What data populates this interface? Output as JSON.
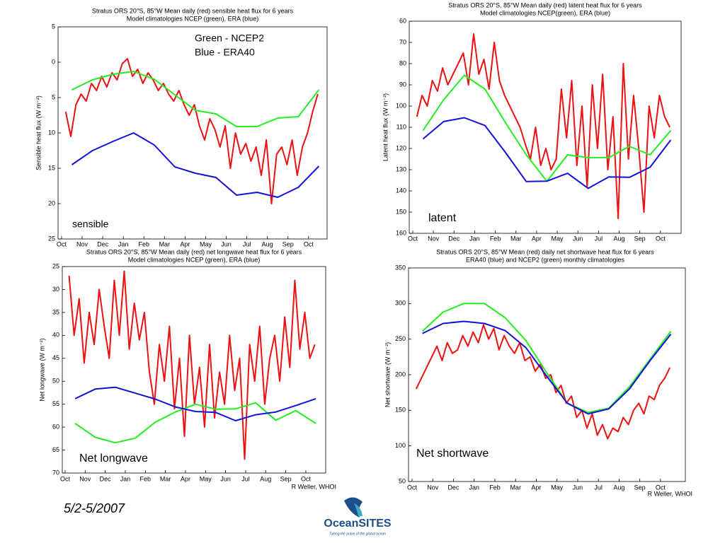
{
  "chart_data": [
    {
      "type": "line",
      "title": "Stratus ORS 20°S, 85°W  Mean daily (red) sensible heat flux for 6 years",
      "subtitle": "Model climatologies     NCEP (green), ERA (blue)",
      "ylabel": "Sensible heat flux (W m⁻²)",
      "annotations": [
        "Green - NCEP2",
        "Blue - ERA40",
        "sensible"
      ],
      "xlim": [
        -0.17,
        12.9
      ],
      "ylim": [
        25,
        -5
      ],
      "xticks": [
        {
          "value": 0,
          "label": "Oct"
        },
        {
          "value": 1,
          "label": "Nov"
        },
        {
          "value": 2,
          "label": "Dec"
        },
        {
          "value": 3,
          "label": "Jan"
        },
        {
          "value": 4,
          "label": "Feb"
        },
        {
          "value": 5,
          "label": "Mar"
        },
        {
          "value": 6,
          "label": "Apr"
        },
        {
          "value": 7,
          "label": "May"
        },
        {
          "value": 8,
          "label": "Jun"
        },
        {
          "value": 9,
          "label": "Jul"
        },
        {
          "value": 10,
          "label": "Aug"
        },
        {
          "value": 11,
          "label": "Sep"
        },
        {
          "value": 12,
          "label": "Oct"
        }
      ],
      "yticks": [
        {
          "value": -5,
          "label": "5"
        },
        0,
        5,
        10,
        15,
        20,
        25
      ],
      "series": [
        {
          "color": "#ee1111",
          "width": 2,
          "x": [
            0.2,
            0.45,
            0.7,
            0.95,
            1.2,
            1.45,
            1.7,
            1.95,
            2.2,
            2.45,
            2.7,
            2.95,
            3.2,
            3.45,
            3.7,
            3.95,
            4.2,
            4.45,
            4.7,
            4.95,
            5.2,
            5.45,
            5.7,
            5.95,
            6.2,
            6.45,
            6.7,
            6.95,
            7.2,
            7.45,
            7.7,
            7.95,
            8.2,
            8.45,
            8.7,
            8.95,
            9.2,
            9.45,
            9.7,
            9.95,
            10.2,
            10.45,
            10.7,
            10.95,
            11.2,
            11.45,
            11.7,
            11.95,
            12.2,
            12.45
          ],
          "values": [
            7,
            10.5,
            6,
            4.5,
            5.5,
            3,
            4,
            2,
            3.5,
            1.5,
            2.5,
            0.2,
            -0.5,
            2,
            1,
            3,
            1.5,
            2.5,
            4,
            3,
            4.5,
            5.5,
            4,
            6,
            7.5,
            6,
            9,
            11,
            8,
            9.5,
            12,
            9,
            15,
            10,
            13,
            11.5,
            14,
            12,
            16,
            11,
            20,
            13,
            12,
            14.5,
            11,
            16,
            12,
            10,
            7,
            4.5
          ]
        },
        {
          "color": "#22ee22",
          "width": 2,
          "x": [
            0.5,
            1.5,
            2.5,
            3.5,
            4.5,
            5.5,
            6.5,
            7.5,
            8.5,
            9.5,
            10.5,
            11.5,
            12.5
          ],
          "values": [
            3.9,
            2.5,
            1.7,
            1.3,
            2.4,
            4.6,
            6.8,
            7.3,
            9.1,
            9.1,
            7.9,
            7.7,
            3.9
          ]
        },
        {
          "color": "#1111dd",
          "width": 2,
          "x": [
            0.5,
            1.5,
            2.5,
            3.5,
            4.5,
            5.5,
            6.5,
            7.5,
            8.5,
            9.5,
            10.5,
            11.5,
            12.5
          ],
          "values": [
            14.5,
            12.5,
            11.2,
            10,
            11.7,
            14.8,
            15.7,
            16.3,
            18.8,
            18.4,
            19.1,
            17.7,
            14.7
          ]
        }
      ]
    },
    {
      "type": "line",
      "title": "Stratus ORS 20°S, 85°W  Mean daily (red) latent heat flux for 6 years",
      "subtitle": "Model climatologies     NCEP(green), ERA (blue)",
      "ylabel": "Latent heat flux (W m⁻²)",
      "annotations": [
        "latent"
      ],
      "xlim": [
        -0.17,
        13.0
      ],
      "ylim": [
        160,
        60
      ],
      "xticks": [
        {
          "value": 0,
          "label": "Oct"
        },
        {
          "value": 1,
          "label": "Nov"
        },
        {
          "value": 2,
          "label": "Dec"
        },
        {
          "value": 3,
          "label": "Jan"
        },
        {
          "value": 4,
          "label": "Feb"
        },
        {
          "value": 5,
          "label": "Mar"
        },
        {
          "value": 6,
          "label": "Apr"
        },
        {
          "value": 7,
          "label": "May"
        },
        {
          "value": 8,
          "label": "Jun"
        },
        {
          "value": 9,
          "label": "Jul"
        },
        {
          "value": 10,
          "label": "Aug"
        },
        {
          "value": 11,
          "label": "Sep"
        },
        {
          "value": 12,
          "label": "Oct"
        }
      ],
      "yticks": [
        60,
        70,
        80,
        90,
        100,
        110,
        120,
        130,
        140,
        150,
        160
      ],
      "series": [
        {
          "color": "#ee1111",
          "width": 2,
          "x": [
            0.2,
            0.45,
            0.7,
            0.95,
            1.2,
            1.45,
            1.7,
            1.95,
            2.2,
            2.45,
            2.7,
            2.95,
            3.2,
            3.45,
            3.7,
            3.95,
            4.2,
            4.45,
            4.7,
            4.95,
            5.2,
            5.45,
            5.7,
            5.95,
            6.2,
            6.45,
            6.7,
            6.95,
            7.2,
            7.45,
            7.7,
            7.95,
            8.2,
            8.45,
            8.7,
            8.95,
            9.2,
            9.45,
            9.7,
            9.95,
            10.2,
            10.45,
            10.7,
            10.95,
            11.2,
            11.45,
            11.7,
            11.95,
            12.2,
            12.45
          ],
          "values": [
            105,
            95,
            100,
            88,
            93,
            82,
            90,
            85,
            80,
            75,
            90,
            66,
            85,
            78,
            92,
            70,
            88,
            95,
            100,
            105,
            110,
            118,
            125,
            110,
            128,
            120,
            130,
            125,
            92,
            115,
            88,
            128,
            100,
            138,
            90,
            120,
            85,
            130,
            105,
            153,
            80,
            125,
            95,
            120,
            150,
            100,
            115,
            95,
            105,
            110
          ]
        },
        {
          "color": "#22ee22",
          "width": 2,
          "x": [
            0.5,
            1.5,
            2.5,
            3.5,
            4.5,
            5.5,
            6.5,
            7.5,
            8.5,
            9.5,
            10.5,
            11.5,
            12.5
          ],
          "values": [
            111.5,
            97,
            85.5,
            92,
            108,
            123,
            135.5,
            123,
            124.3,
            124.3,
            119,
            123,
            111.5
          ]
        },
        {
          "color": "#1111dd",
          "width": 2,
          "x": [
            0.5,
            1.5,
            2.5,
            3.5,
            4.5,
            5.5,
            6.5,
            7.5,
            8.5,
            9.5,
            10.5,
            11.5,
            12.5
          ],
          "values": [
            115.5,
            107.3,
            105.5,
            109.2,
            122,
            135.6,
            135.4,
            131.7,
            138.8,
            133.4,
            133.6,
            128.8,
            116
          ]
        }
      ]
    },
    {
      "type": "line",
      "title": "Stratus ORS 20°S, 85°W  Mean daily (red) net longwave heat flux for 6 years",
      "subtitle": "Model climatologies     NCEP (green), ERA (blue)",
      "ylabel": "Net longwave (W m⁻²)",
      "annotations": [
        "Net longwave"
      ],
      "credit": "R Weller, WHOI",
      "xlim": [
        -0.14,
        12.99
      ],
      "ylim": [
        70,
        25
      ],
      "xticks": [
        {
          "value": 0,
          "label": "Oct"
        },
        {
          "value": 1,
          "label": "Nov"
        },
        {
          "value": 2,
          "label": "Dec"
        },
        {
          "value": 3,
          "label": "Jan"
        },
        {
          "value": 4,
          "label": "Feb"
        },
        {
          "value": 5,
          "label": "Mar"
        },
        {
          "value": 6,
          "label": "Apr"
        },
        {
          "value": 7,
          "label": "May"
        },
        {
          "value": 8,
          "label": "Jun"
        },
        {
          "value": 9,
          "label": "Jul"
        },
        {
          "value": 10,
          "label": "Aug"
        },
        {
          "value": 11,
          "label": "Sep"
        },
        {
          "value": 12,
          "label": "Oct"
        }
      ],
      "yticks": [
        25,
        30,
        35,
        40,
        45,
        50,
        55,
        60,
        65,
        70
      ],
      "series": [
        {
          "color": "#ee1111",
          "width": 2,
          "x": [
            0.2,
            0.45,
            0.7,
            0.95,
            1.2,
            1.45,
            1.7,
            1.95,
            2.2,
            2.45,
            2.7,
            2.95,
            3.2,
            3.45,
            3.7,
            3.95,
            4.2,
            4.45,
            4.7,
            4.95,
            5.2,
            5.45,
            5.7,
            5.95,
            6.2,
            6.45,
            6.7,
            6.95,
            7.2,
            7.45,
            7.7,
            7.95,
            8.2,
            8.45,
            8.7,
            8.95,
            9.2,
            9.45,
            9.7,
            9.95,
            10.2,
            10.45,
            10.7,
            10.95,
            11.2,
            11.45,
            11.7,
            11.95,
            12.2,
            12.45
          ],
          "values": [
            27,
            40,
            32,
            46,
            35,
            42,
            30,
            38,
            45,
            28,
            40,
            26,
            43,
            33,
            41,
            35,
            48,
            55,
            42,
            50,
            38,
            56,
            45,
            62,
            40,
            55,
            47,
            60,
            42,
            58,
            48,
            55,
            40,
            52,
            45,
            67,
            42,
            50,
            38,
            55,
            45,
            40,
            50,
            36,
            47,
            28,
            43,
            35,
            45,
            42
          ]
        },
        {
          "color": "#22ee22",
          "width": 2,
          "x": [
            0.5,
            1.5,
            2.5,
            3.5,
            4.5,
            5.5,
            6.5,
            7.5,
            8.5,
            9.5,
            10.5,
            11.5,
            12.5
          ],
          "values": [
            59.2,
            62.2,
            63.4,
            62.4,
            58.9,
            56.7,
            55.0,
            56.1,
            56.0,
            54.7,
            58.5,
            56.4,
            59.2
          ]
        },
        {
          "color": "#1111dd",
          "width": 2,
          "x": [
            0.5,
            1.5,
            2.5,
            3.5,
            4.5,
            5.5,
            6.5,
            7.5,
            8.5,
            9.5,
            10.5,
            11.5,
            12.5
          ],
          "values": [
            53.8,
            51.7,
            51.3,
            52.6,
            53.9,
            55.6,
            56.6,
            56.8,
            58.6,
            57.3,
            56.7,
            55.3,
            53.8
          ]
        }
      ]
    },
    {
      "type": "line",
      "title": "Stratus ORS 20°S, 85°W  Mean (red) daily net shortwave heat flux for 6 years",
      "subtitle": "ERA40 (blue) and NCEP2 (green) monthly climatologies",
      "ylabel": "Net shortwave (W m⁻²)",
      "annotations": [
        "Net shortwave"
      ],
      "credit": "R Weller, WHOI",
      "xlim": [
        -0.17,
        13.2
      ],
      "ylim": [
        50,
        350
      ],
      "xticks": [
        {
          "value": 0,
          "label": "Oct"
        },
        {
          "value": 1,
          "label": "Nov"
        },
        {
          "value": 2,
          "label": "Dec"
        },
        {
          "value": 3,
          "label": "Jan"
        },
        {
          "value": 4,
          "label": "Feb"
        },
        {
          "value": 5,
          "label": "Mar"
        },
        {
          "value": 6,
          "label": "Apr"
        },
        {
          "value": 7,
          "label": "May"
        },
        {
          "value": 8,
          "label": "Jun"
        },
        {
          "value": 9,
          "label": "Jul"
        },
        {
          "value": 10,
          "label": "Aug"
        },
        {
          "value": 11,
          "label": "Sep"
        },
        {
          "value": 12,
          "label": "Oct"
        }
      ],
      "yticks": [
        50,
        100,
        150,
        200,
        250,
        300,
        350
      ],
      "series": [
        {
          "color": "#ee1111",
          "width": 2,
          "x": [
            0.2,
            0.45,
            0.7,
            0.95,
            1.2,
            1.45,
            1.7,
            1.95,
            2.2,
            2.45,
            2.7,
            2.95,
            3.2,
            3.45,
            3.7,
            3.95,
            4.2,
            4.45,
            4.7,
            4.95,
            5.2,
            5.45,
            5.7,
            5.95,
            6.2,
            6.45,
            6.7,
            6.95,
            7.2,
            7.45,
            7.7,
            7.95,
            8.2,
            8.45,
            8.7,
            8.95,
            9.2,
            9.45,
            9.7,
            9.95,
            10.2,
            10.45,
            10.7,
            10.95,
            11.2,
            11.45,
            11.7,
            11.95,
            12.2,
            12.45
          ],
          "values": [
            180,
            195,
            210,
            225,
            240,
            220,
            245,
            230,
            235,
            255,
            240,
            260,
            245,
            270,
            250,
            265,
            235,
            255,
            240,
            230,
            245,
            220,
            225,
            205,
            215,
            195,
            200,
            175,
            185,
            160,
            170,
            140,
            150,
            125,
            145,
            115,
            130,
            110,
            125,
            120,
            140,
            130,
            150,
            160,
            145,
            170,
            165,
            185,
            195,
            210
          ]
        },
        {
          "color": "#22ee22",
          "width": 2,
          "x": [
            0.5,
            1.5,
            2.5,
            3.5,
            4.5,
            5.5,
            6.5,
            7.5,
            8.5,
            9.5,
            10.5,
            11.5,
            12.5
          ],
          "values": [
            261,
            288,
            300,
            300,
            280,
            248,
            203,
            160,
            147,
            153,
            183,
            222,
            261
          ]
        },
        {
          "color": "#1111dd",
          "width": 2,
          "x": [
            0.5,
            1.5,
            2.5,
            3.5,
            4.5,
            5.5,
            6.5,
            7.5,
            8.5,
            9.5,
            10.5,
            11.5,
            12.5
          ],
          "values": [
            258,
            272,
            275,
            272,
            262,
            238,
            198,
            160,
            145,
            152,
            180,
            220,
            257
          ]
        }
      ]
    }
  ],
  "footer": {
    "date": "5/2-5/2007",
    "logo": "OceanSITES",
    "tagline": "Taking the pulse of the global ocean"
  }
}
